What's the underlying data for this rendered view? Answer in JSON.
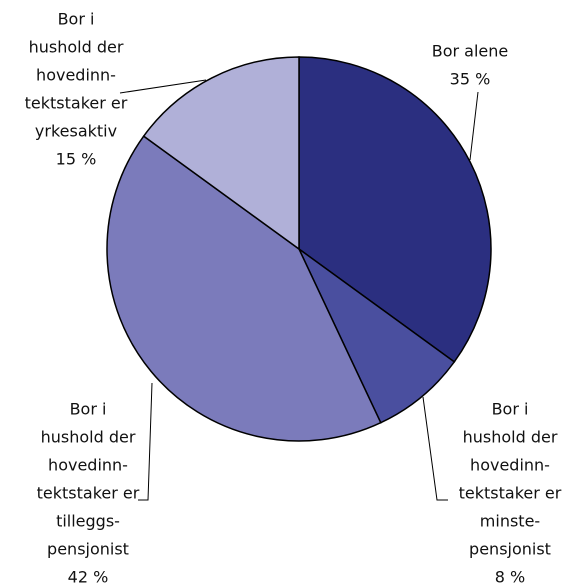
{
  "chart_data": {
    "type": "pie",
    "categories": [
      [
        "Bor alene"
      ],
      [
        "Bor i",
        "hushold der",
        "hovedinn-",
        "tektstaker er",
        "minste-",
        "pensjonist"
      ],
      [
        "Bor i",
        "hushold der",
        "hovedinn-",
        "tektstaker er",
        "tilleggs-",
        "pensjonist"
      ],
      [
        "Bor i",
        "hushold der",
        "hovedinn-",
        "tektstaker er",
        "yrkesaktiv"
      ]
    ],
    "values": [
      35,
      8,
      42,
      15
    ],
    "value_labels": [
      "35 %",
      "8 %",
      "42 %",
      "15 %"
    ],
    "colors": [
      "#2b2f80",
      "#4a4f9f",
      "#7b7bbb",
      "#b0b0d8"
    ]
  }
}
